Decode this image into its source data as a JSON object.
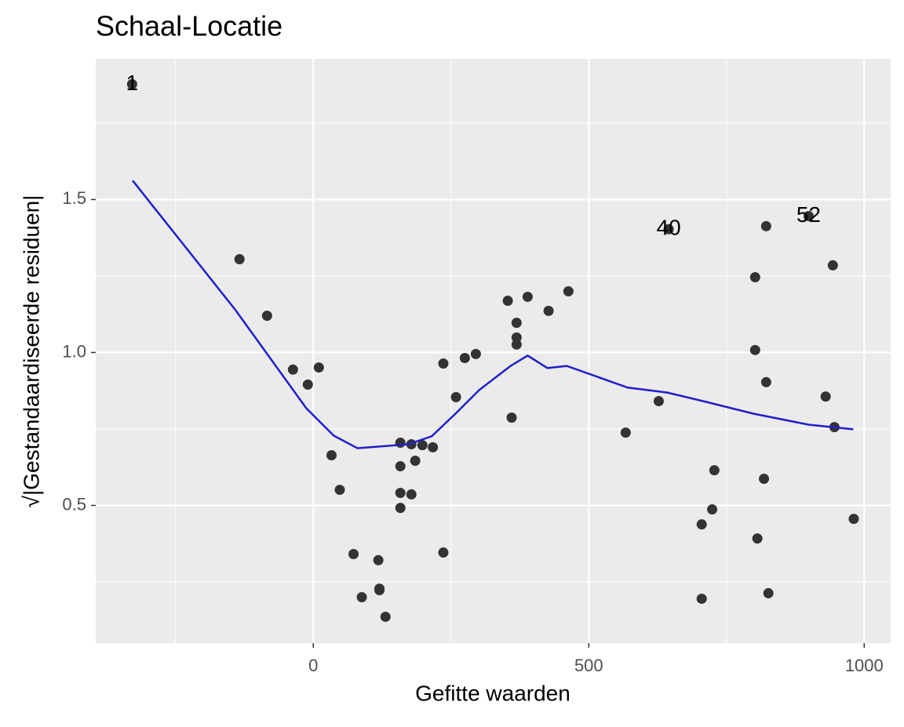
{
  "chart_data": {
    "type": "scatter",
    "title": "Schaal-Locatie",
    "xlabel": "Gefitte waarden",
    "ylabel": "√|Gestandaardiseerde residuen|",
    "x": [
      -329,
      -134,
      -84,
      -37,
      -10,
      10,
      33,
      48,
      73,
      88,
      118,
      120,
      120,
      131,
      158,
      158,
      158,
      158,
      178,
      178,
      185,
      198,
      217,
      236,
      236,
      259,
      275,
      295,
      353,
      360,
      369,
      369,
      369,
      389,
      427,
      463,
      567,
      627,
      645,
      705,
      705,
      724,
      728,
      802,
      802,
      806,
      818,
      822,
      822,
      826,
      899,
      930,
      943,
      946,
      981
    ],
    "values": [
      1.877,
      1.305,
      1.12,
      0.944,
      0.895,
      0.951,
      0.664,
      0.551,
      0.341,
      0.2,
      0.321,
      0.228,
      0.223,
      0.136,
      0.705,
      0.628,
      0.541,
      0.492,
      0.7,
      0.536,
      0.646,
      0.697,
      0.69,
      0.346,
      0.964,
      0.854,
      0.982,
      0.995,
      1.169,
      0.787,
      1.097,
      1.049,
      1.026,
      1.182,
      1.136,
      1.2,
      0.738,
      0.841,
      1.403,
      0.195,
      0.438,
      0.487,
      0.615,
      1.246,
      1.008,
      0.392,
      0.587,
      1.413,
      0.903,
      0.213,
      1.446,
      0.856,
      1.285,
      0.756,
      0.456
    ],
    "color": "#333333",
    "smooth": {
      "x": [
        -328,
        -141,
        -13,
        37,
        80,
        115,
        172,
        215,
        258,
        301,
        358,
        389,
        425,
        460,
        571,
        642,
        714,
        799,
        899,
        980
      ],
      "values": [
        1.562,
        1.138,
        0.818,
        0.728,
        0.687,
        0.692,
        0.7,
        0.726,
        0.8,
        0.877,
        0.956,
        0.99,
        0.949,
        0.956,
        0.885,
        0.869,
        0.838,
        0.8,
        0.764,
        0.749
      ],
      "color": "#1f1fcc"
    },
    "annotations": [
      {
        "text": "1",
        "x": -329,
        "y": 1.877
      },
      {
        "text": "40",
        "x": 645,
        "y": 1.403
      },
      {
        "text": "52",
        "x": 899,
        "y": 1.446
      }
    ],
    "xlim": [
      -395,
      1048
    ],
    "ylim": [
      0.05,
      1.96
    ],
    "xticks": [
      0,
      500,
      1000
    ],
    "yticks": [
      0.5,
      {
        "value": 1,
        "label": "1.0"
      },
      1.5
    ],
    "xminor": [
      -250,
      250,
      750
    ],
    "yminor": [
      0.25,
      0.75,
      1.25,
      1.75
    ],
    "grid": true
  }
}
